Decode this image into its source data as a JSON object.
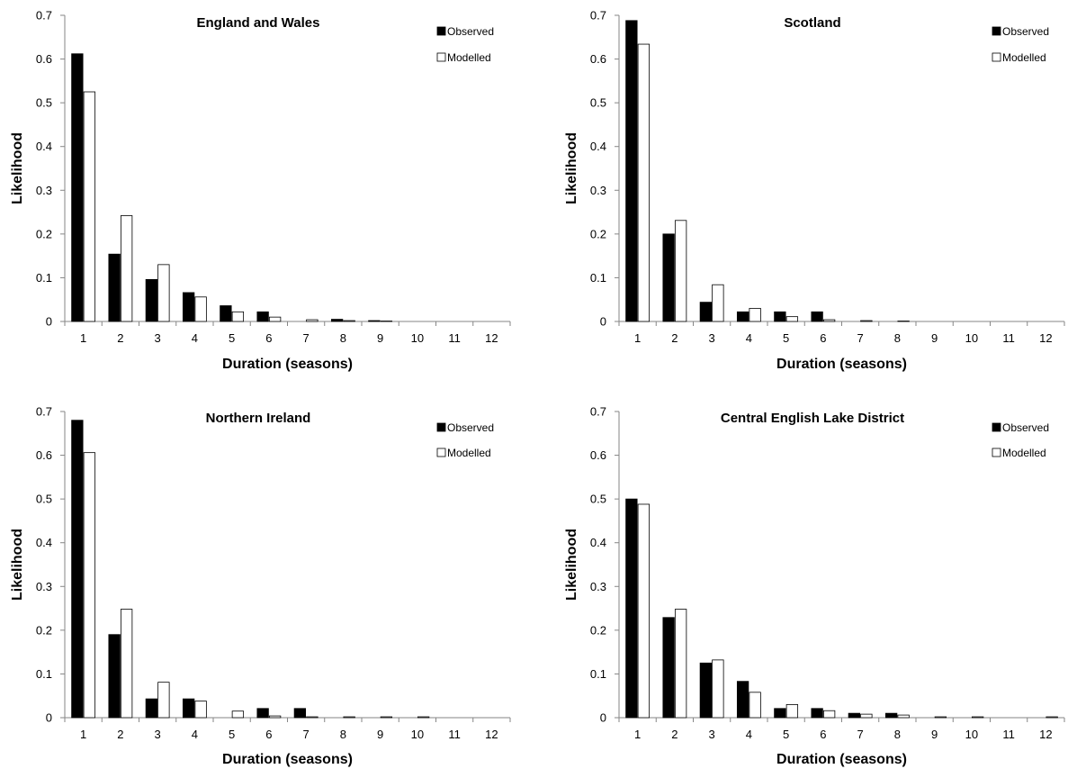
{
  "colors": {
    "observed": "#000000",
    "modelled": "#ffffff",
    "axis": "#868686"
  },
  "chart_data": [
    {
      "type": "bar",
      "title": "England and Wales",
      "xlabel": "Duration (seasons)",
      "ylabel": "Likelihood",
      "ylim": [
        0,
        0.7
      ],
      "yticks": [
        "0",
        "0.1",
        "0.2",
        "0.3",
        "0.4",
        "0.5",
        "0.6",
        "0.7"
      ],
      "categories": [
        "1",
        "2",
        "3",
        "4",
        "5",
        "6",
        "7",
        "8",
        "9",
        "10",
        "11",
        "12"
      ],
      "legend_position": "top-right",
      "grid": false,
      "series": [
        {
          "name": "Observed",
          "values": [
            0.612,
            0.154,
            0.096,
            0.066,
            0.036,
            0.022,
            0,
            0.005,
            0.002,
            0,
            0,
            0
          ]
        },
        {
          "name": "Modelled",
          "values": [
            0.525,
            0.242,
            0.13,
            0.056,
            0.022,
            0.01,
            0.004,
            0.002,
            0.001,
            0,
            0,
            0
          ]
        }
      ]
    },
    {
      "type": "bar",
      "title": "Scotland",
      "xlabel": "Duration (seasons)",
      "ylabel": "Likelihood",
      "ylim": [
        0,
        0.7
      ],
      "yticks": [
        "0",
        "0.1",
        "0.2",
        "0.3",
        "0.4",
        "0.5",
        "0.6",
        "0.7"
      ],
      "categories": [
        "1",
        "2",
        "3",
        "4",
        "5",
        "6",
        "7",
        "8",
        "9",
        "10",
        "11",
        "12"
      ],
      "legend_position": "top-right",
      "grid": false,
      "series": [
        {
          "name": "Observed",
          "values": [
            0.688,
            0.2,
            0.044,
            0.022,
            0.022,
            0.022,
            0,
            0,
            0,
            0,
            0,
            0
          ]
        },
        {
          "name": "Modelled",
          "values": [
            0.634,
            0.231,
            0.084,
            0.03,
            0.011,
            0.004,
            0.002,
            0.001,
            0,
            0,
            0,
            0
          ]
        }
      ]
    },
    {
      "type": "bar",
      "title": "Northern Ireland",
      "xlabel": "Duration (seasons)",
      "ylabel": "Likelihood",
      "ylim": [
        0,
        0.7
      ],
      "yticks": [
        "0",
        "0.1",
        "0.2",
        "0.3",
        "0.4",
        "0.5",
        "0.6",
        "0.7"
      ],
      "categories": [
        "1",
        "2",
        "3",
        "4",
        "5",
        "6",
        "7",
        "8",
        "9",
        "10",
        "11",
        "12"
      ],
      "legend_position": "top-right",
      "grid": false,
      "series": [
        {
          "name": "Observed",
          "values": [
            0.68,
            0.19,
            0.043,
            0.043,
            0,
            0.021,
            0.021,
            0,
            0,
            0,
            0,
            0
          ]
        },
        {
          "name": "Modelled",
          "values": [
            0.606,
            0.248,
            0.081,
            0.038,
            0.015,
            0.004,
            0.002,
            0.002,
            0.002,
            0.002,
            0,
            0
          ]
        }
      ]
    },
    {
      "type": "bar",
      "title": "Central English Lake District",
      "xlabel": "Duration (seasons)",
      "ylabel": "Likelihood",
      "ylim": [
        0,
        0.7
      ],
      "yticks": [
        "0",
        "0.1",
        "0.2",
        "0.3",
        "0.4",
        "0.5",
        "0.6",
        "0.7"
      ],
      "categories": [
        "1",
        "2",
        "3",
        "4",
        "5",
        "6",
        "7",
        "8",
        "9",
        "10",
        "11",
        "12"
      ],
      "legend_position": "top-right",
      "grid": false,
      "series": [
        {
          "name": "Observed",
          "values": [
            0.5,
            0.229,
            0.125,
            0.083,
            0.021,
            0.021,
            0.01,
            0.01,
            0,
            0,
            0,
            0
          ]
        },
        {
          "name": "Modelled",
          "values": [
            0.488,
            0.248,
            0.132,
            0.058,
            0.03,
            0.016,
            0.008,
            0.006,
            0.002,
            0.002,
            0,
            0.002
          ]
        }
      ]
    }
  ]
}
